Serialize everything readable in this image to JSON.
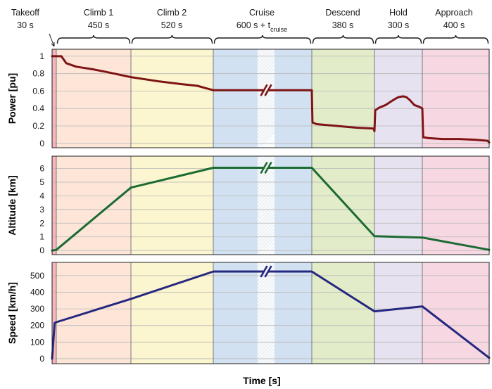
{
  "chart_data": {
    "type": "line",
    "x_axis_label": "Time [s]",
    "grid": true,
    "phases": [
      {
        "name": "Takeoff",
        "duration": "30 s",
        "color": "#f6b6be"
      },
      {
        "name": "Climb 1",
        "duration": "450 s",
        "color": "#fde6d8"
      },
      {
        "name": "Climb 2",
        "duration": "520 s",
        "color": "#fbf6cf"
      },
      {
        "name": "Cruise",
        "duration": "600 s + t",
        "duration_sub": "cruise",
        "color": "#d2e1f1"
      },
      {
        "name": "Descend",
        "duration": "380 s",
        "color": "#e2ecc9"
      },
      {
        "name": "Hold",
        "duration": "300 s",
        "color": "#e6e2ef"
      },
      {
        "name": "Approach",
        "duration": "400 s",
        "color": "#f6d7e2"
      }
    ],
    "panels": [
      {
        "key": "power",
        "ylabel": "Power [pu]",
        "ylim": [
          -0.05,
          1.08
        ],
        "yticks": [
          0,
          0.2,
          0.4,
          0.6,
          0.8,
          1
        ],
        "ytick_labels": [
          "0",
          "0.2",
          "0.4",
          "0.6",
          "0.8",
          "1"
        ],
        "color": "#7f1414",
        "points": [
          [
            0,
            1
          ],
          [
            30,
            1
          ],
          [
            60,
            1
          ],
          [
            90,
            0.92
          ],
          [
            150,
            0.88
          ],
          [
            250,
            0.85
          ],
          [
            330,
            0.82
          ],
          [
            480,
            0.76
          ],
          [
            660,
            0.71
          ],
          [
            800,
            0.68
          ],
          [
            900,
            0.66
          ],
          [
            960,
            0.63
          ],
          [
            1000,
            0.61
          ],
          [
            1600,
            0.61
          ],
          [
            1604,
            0.24
          ],
          [
            1630,
            0.22
          ],
          [
            1750,
            0.2
          ],
          [
            1870,
            0.18
          ],
          [
            1975,
            0.17
          ],
          [
            1980,
            0.14
          ],
          [
            1985,
            0.38
          ],
          [
            2010,
            0.41
          ],
          [
            2050,
            0.44
          ],
          [
            2100,
            0.5
          ],
          [
            2130,
            0.53
          ],
          [
            2160,
            0.54
          ],
          [
            2180,
            0.53
          ],
          [
            2200,
            0.5
          ],
          [
            2230,
            0.44
          ],
          [
            2260,
            0.42
          ],
          [
            2280,
            0.4
          ],
          [
            2285,
            0.07
          ],
          [
            2320,
            0.06
          ],
          [
            2400,
            0.05
          ],
          [
            2500,
            0.05
          ],
          [
            2600,
            0.04
          ],
          [
            2670,
            0.03
          ],
          [
            2685,
            0.01
          ]
        ],
        "line_width": 3
      },
      {
        "key": "altitude",
        "ylabel": "Altitude [km]",
        "ylim": [
          -0.3,
          6.9
        ],
        "yticks": [
          0,
          1,
          2,
          3,
          4,
          5,
          6
        ],
        "ytick_labels": [
          "0",
          "1",
          "2",
          "3",
          "4",
          "5",
          "6"
        ],
        "color": "#1c6b33",
        "points": [
          [
            0,
            0
          ],
          [
            30,
            0.05
          ],
          [
            480,
            4.6
          ],
          [
            1000,
            6.05
          ],
          [
            1600,
            6.05
          ],
          [
            1980,
            1.05
          ],
          [
            2280,
            0.95
          ],
          [
            2680,
            0.05
          ]
        ],
        "line_width": 3
      },
      {
        "key": "speed",
        "ylabel": "Speed [km/h]",
        "ylim": [
          -30,
          580
        ],
        "yticks": [
          0,
          100,
          200,
          300,
          400,
          500
        ],
        "ytick_labels": [
          "0",
          "100",
          "200",
          "300",
          "400",
          "500"
        ],
        "color": "#262880",
        "points": [
          [
            0,
            0
          ],
          [
            18,
            215
          ],
          [
            30,
            220
          ],
          [
            480,
            360
          ],
          [
            1000,
            525
          ],
          [
            1600,
            525
          ],
          [
            1980,
            285
          ],
          [
            2280,
            315
          ],
          [
            2680,
            5
          ]
        ],
        "line_width": 3
      }
    ],
    "break_marker": "//",
    "x_break": {
      "time": 1300,
      "label_prefix": "t",
      "label_sub": "cruise"
    }
  }
}
